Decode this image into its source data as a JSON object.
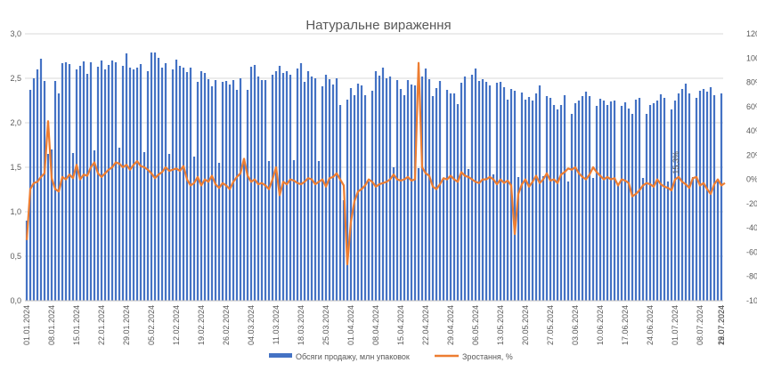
{
  "chart_data": {
    "type": "bar",
    "title": "Натуральне вираження",
    "xlabel": "",
    "ylabel": "",
    "ylim": [
      0,
      3.0
    ],
    "y_ticks": [
      "0,0",
      "0,5",
      "1,0",
      "1,5",
      "2,0",
      "2,5",
      "3,0"
    ],
    "y2lim": [
      -100,
      120
    ],
    "y2_ticks": [
      "-100%",
      "-80%",
      "-60%",
      "-40%",
      "-20%",
      "0%",
      "20%",
      "40%",
      "60%",
      "80%",
      "100%",
      "120%"
    ],
    "x_ticks": [
      "01.01.2024",
      "08.01.2024",
      "15.01.2024",
      "22.01.2024",
      "29.01.2024",
      "05.02.2024",
      "12.02.2024",
      "19.02.2024",
      "26.02.2024",
      "04.03.2024",
      "11.03.2024",
      "18.03.2024",
      "25.03.2024",
      "01.04.2024",
      "08.04.2024",
      "15.04.2024",
      "22.04.2024",
      "29.04.2024",
      "06.05.2024",
      "13.05.2024",
      "20.05.2024",
      "27.05.2024",
      "03.06.2024",
      "10.06.2024",
      "17.06.2024",
      "24.06.2024",
      "01.07.2024",
      "08.07.2024",
      "15.07.2024",
      "22.07.2024",
      "29.07.2024"
    ],
    "start_date": "2024-01-01",
    "bar_color": "#4472c4",
    "line_color": "#ed7d31",
    "annotation": "15,3%",
    "legend_position": "bottom",
    "series": [
      {
        "name": "Обсяги продажу, млн упаковок",
        "axis": "left",
        "values": [
          0.9,
          2.37,
          2.5,
          2.6,
          2.72,
          2.47,
          1.65,
          1.7,
          2.47,
          2.33,
          2.67,
          2.68,
          2.66,
          1.66,
          2.6,
          2.64,
          2.69,
          2.55,
          2.68,
          1.69,
          2.63,
          2.7,
          2.6,
          2.65,
          2.7,
          2.68,
          1.72,
          2.64,
          2.78,
          2.62,
          2.6,
          2.62,
          2.66,
          1.67,
          2.58,
          2.79,
          2.79,
          2.73,
          2.62,
          2.67,
          1.65,
          2.6,
          2.71,
          2.64,
          2.62,
          2.57,
          2.62,
          1.62,
          2.46,
          2.58,
          2.56,
          2.49,
          2.41,
          2.48,
          1.55,
          2.46,
          2.47,
          2.43,
          2.48,
          2.37,
          2.5,
          1.6,
          2.37,
          2.63,
          2.65,
          2.52,
          2.48,
          2.48,
          1.57,
          2.54,
          2.58,
          2.64,
          2.56,
          2.58,
          2.54,
          1.58,
          2.61,
          2.67,
          2.46,
          2.58,
          2.52,
          2.5,
          1.57,
          2.41,
          2.54,
          2.49,
          2.43,
          2.5,
          2.2,
          1.13,
          2.26,
          2.39,
          2.31,
          2.44,
          2.42,
          2.31,
          1.34,
          2.36,
          2.58,
          2.53,
          2.62,
          2.5,
          2.52,
          1.5,
          2.48,
          2.38,
          2.31,
          2.48,
          2.43,
          2.42,
          1.49,
          2.52,
          2.61,
          2.49,
          2.3,
          2.39,
          2.47,
          1.36,
          2.37,
          2.33,
          2.33,
          2.21,
          2.45,
          2.52,
          1.48,
          2.54,
          2.61,
          2.47,
          2.49,
          2.46,
          2.42,
          1.42,
          2.45,
          2.46,
          2.4,
          2.26,
          2.38,
          2.36,
          1.39,
          2.34,
          2.26,
          2.29,
          2.25,
          2.33,
          2.42,
          1.4,
          2.3,
          2.28,
          2.2,
          2.15,
          2.2,
          2.31,
          1.34,
          2.1,
          2.22,
          2.25,
          2.3,
          2.35,
          2.3,
          1.38,
          2.19,
          2.27,
          2.25,
          2.2,
          2.24,
          2.25,
          1.3,
          2.19,
          2.23,
          2.16,
          2.1,
          2.26,
          2.28,
          1.38,
          2.1,
          2.2,
          2.22,
          2.25,
          2.32,
          2.28,
          1.34,
          2.15,
          2.25,
          2.33,
          2.38,
          2.44,
          2.33,
          1.39,
          2.28,
          2.36,
          2.38,
          2.35,
          2.4,
          2.31,
          1.34,
          2.33
        ]
      },
      {
        "name": "Зростання, %",
        "axis": "right",
        "values": [
          -50,
          -8,
          -3,
          -2,
          2,
          5,
          48,
          1,
          -8,
          -10,
          2,
          0,
          4,
          1,
          12,
          0,
          4,
          3,
          10,
          14,
          5,
          2,
          5,
          8,
          10,
          14,
          13,
          10,
          12,
          8,
          12,
          15,
          11,
          10,
          8,
          5,
          1,
          4,
          6,
          10,
          7,
          8,
          9,
          7,
          11,
          0,
          -5,
          -3,
          2,
          -5,
          0,
          -2,
          3,
          -4,
          -7,
          -3,
          -5,
          -8,
          -2,
          2,
          5,
          17,
          3,
          -2,
          0,
          -4,
          -3,
          -5,
          -8,
          0,
          10,
          -13,
          -2,
          -4,
          0,
          -1,
          -3,
          -4,
          -2,
          1,
          0,
          -4,
          -2,
          0,
          -6,
          1,
          2,
          5,
          0,
          -5,
          -70,
          -35,
          -18,
          -10,
          -8,
          -5,
          0,
          -2,
          -6,
          -4,
          -3,
          -2,
          0,
          4,
          0,
          -1,
          0,
          2,
          -1,
          0,
          96,
          10,
          5,
          3,
          -6,
          -8,
          -4,
          1,
          0,
          3,
          0,
          -2,
          6,
          3,
          2,
          0,
          -2,
          -3,
          0,
          0,
          2,
          0,
          -4,
          0,
          -3,
          -1,
          -5,
          -45,
          -12,
          -4,
          0,
          -6,
          -2,
          3,
          -3,
          0,
          5,
          -1,
          0,
          -3,
          4,
          6,
          9,
          8,
          10,
          5,
          2,
          0,
          4,
          10,
          6,
          3,
          0,
          2,
          0,
          1,
          -5,
          0,
          -1,
          -3,
          -14,
          -12,
          -9,
          -5,
          -3,
          -4,
          -6,
          0,
          -4,
          -6,
          -7,
          -9,
          0,
          2,
          -2,
          -4,
          -7,
          1,
          2,
          -5,
          -3,
          -8,
          -12,
          -4,
          0,
          -5,
          -3
        ]
      }
    ]
  }
}
